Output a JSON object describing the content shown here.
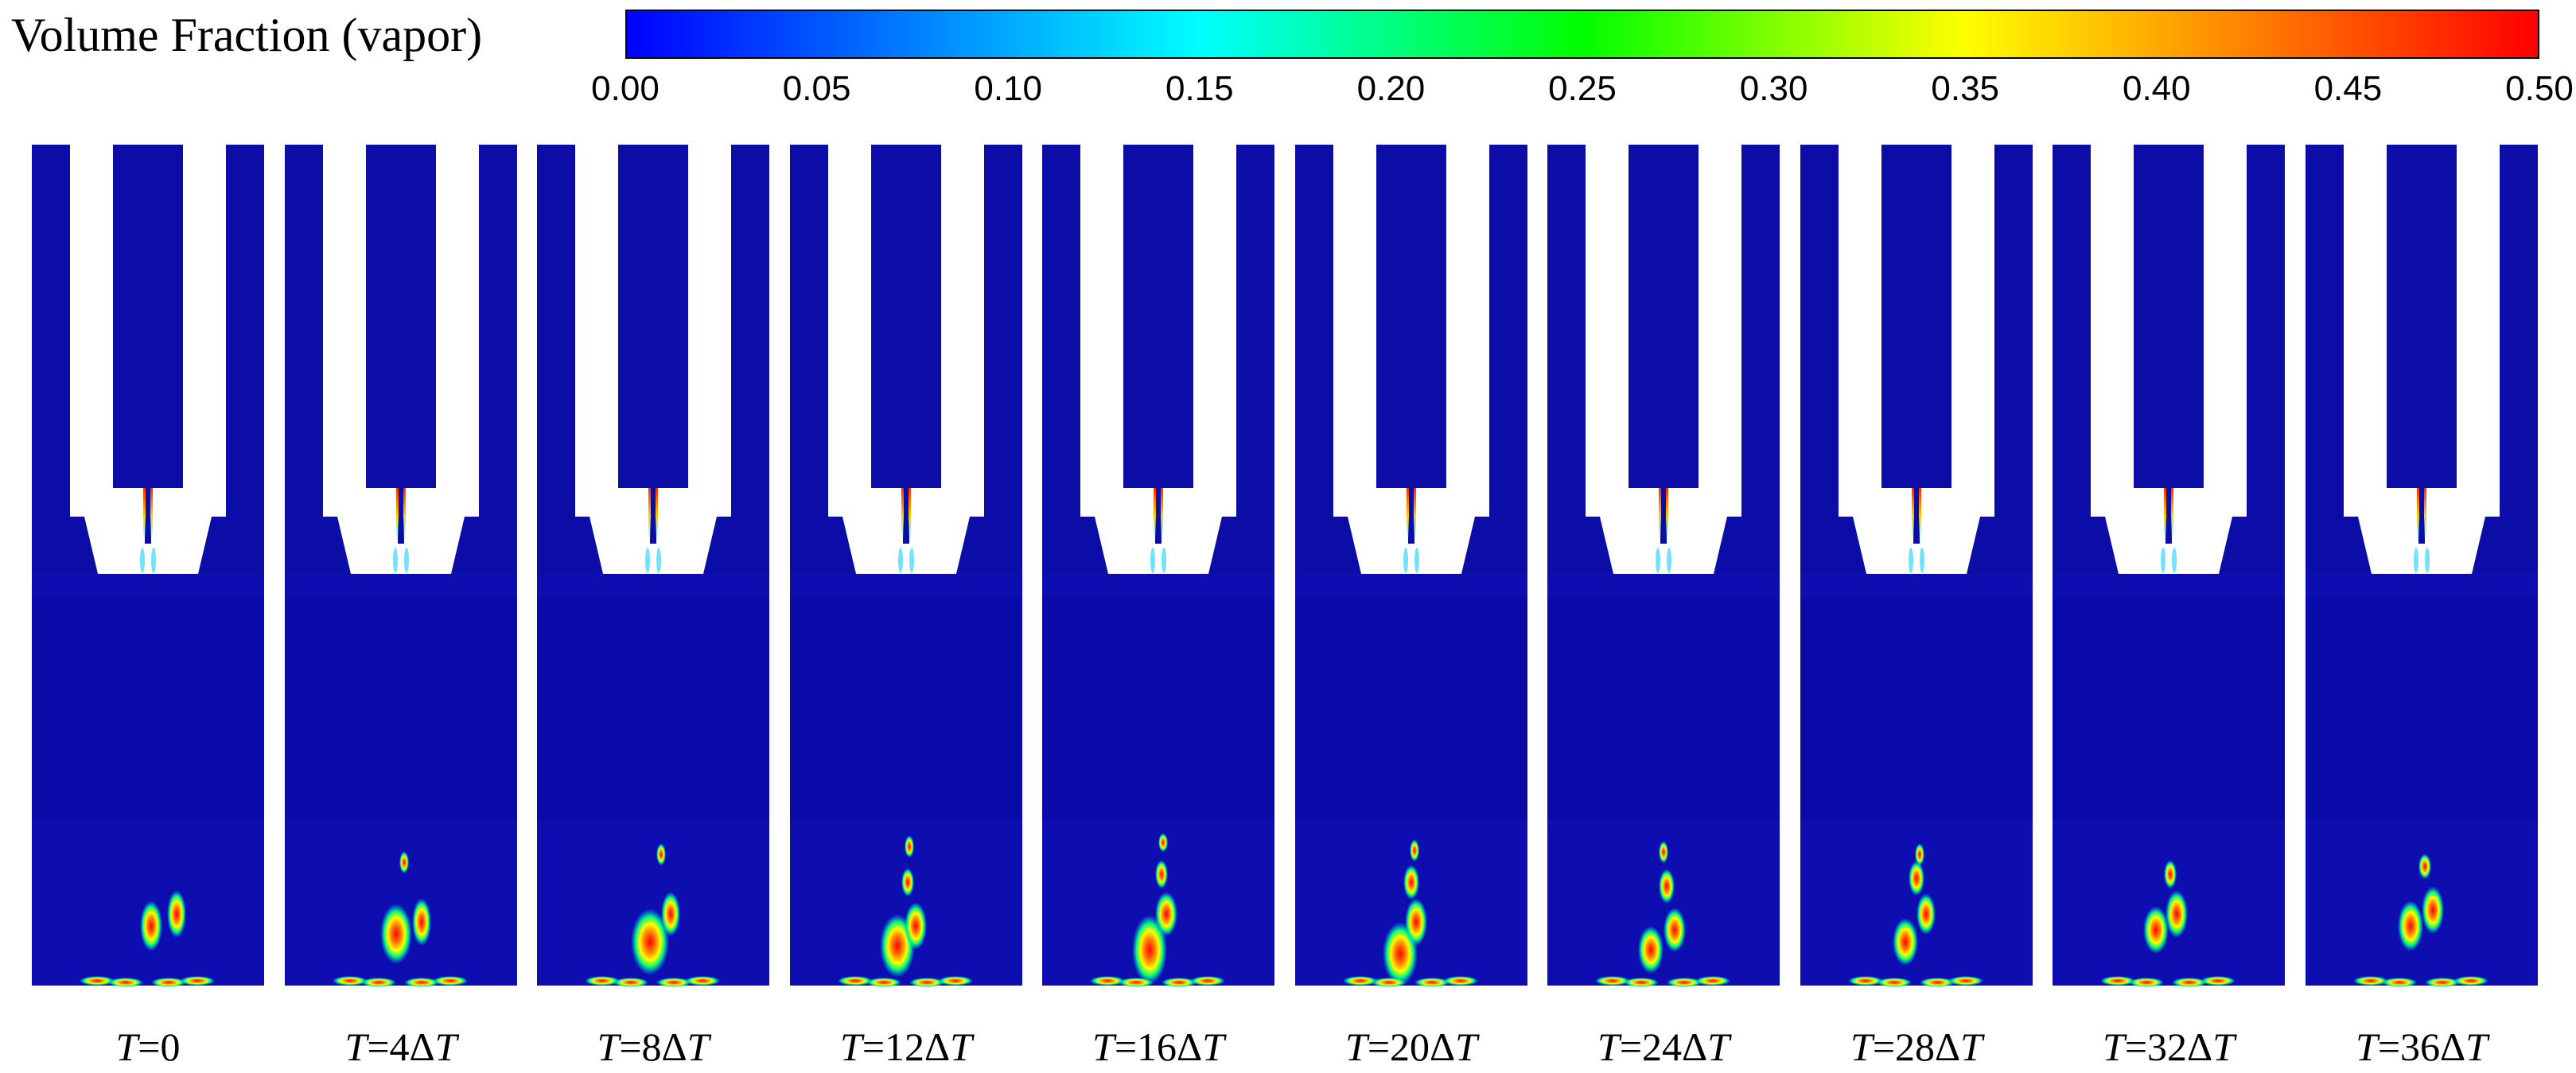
{
  "legend": {
    "title": "Volume Fraction (vapor)",
    "min": 0.0,
    "max": 0.5,
    "ticks": [
      "0.00",
      "0.05",
      "0.10",
      "0.15",
      "0.20",
      "0.25",
      "0.30",
      "0.35",
      "0.40",
      "0.45",
      "0.50"
    ],
    "colormap": [
      "#0000ff",
      "#00ffff",
      "#00ff00",
      "#ffff00",
      "#ff0000"
    ]
  },
  "colors": {
    "liquid": "#0c0ca6",
    "liquid_lower": "#0d0db0",
    "nozzle_jet": "#ff2a00"
  },
  "frames": [
    {
      "var": "T",
      "eq": "=",
      "k": "",
      "step": "0",
      "step_var": ""
    },
    {
      "var": "T",
      "eq": "=",
      "k": "4",
      "step": "Δ",
      "step_var": "T"
    },
    {
      "var": "T",
      "eq": "=",
      "k": "8",
      "step": "Δ",
      "step_var": "T"
    },
    {
      "var": "T",
      "eq": "=",
      "k": "12",
      "step": "Δ",
      "step_var": "T"
    },
    {
      "var": "T",
      "eq": "=",
      "k": "16",
      "step": "Δ",
      "step_var": "T"
    },
    {
      "var": "T",
      "eq": "=",
      "k": "20",
      "step": "Δ",
      "step_var": "T"
    },
    {
      "var": "T",
      "eq": "=",
      "k": "24",
      "step": "Δ",
      "step_var": "T"
    },
    {
      "var": "T",
      "eq": "=",
      "k": "28",
      "step": "Δ",
      "step_var": "T"
    },
    {
      "var": "T",
      "eq": "=",
      "k": "32",
      "step": "Δ",
      "step_var": "T"
    },
    {
      "var": "T",
      "eq": "=",
      "k": "36",
      "step": "Δ",
      "step_var": "T"
    }
  ]
}
